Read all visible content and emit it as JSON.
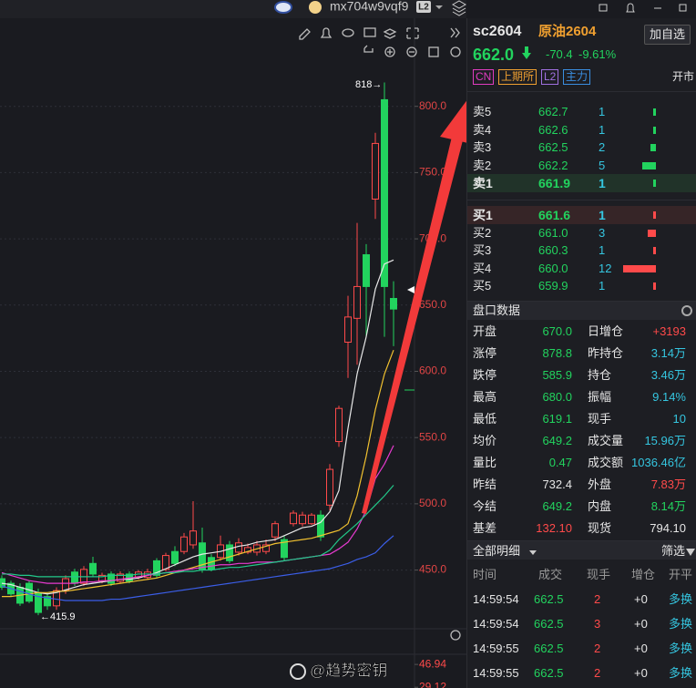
{
  "top_bar": {
    "username": "mx704w9vqf9",
    "badge": "L2"
  },
  "chart_data": {
    "type": "candlestick",
    "candles": {
      "open": [
        443.5,
        440,
        437,
        440,
        433,
        430,
        423,
        434.5,
        448.5,
        440,
        455,
        441.5,
        447,
        441.5,
        447,
        444.5,
        444.5,
        457,
        450.5,
        464,
        464,
        469,
        470.5,
        459.5,
        459.5,
        469,
        463.5,
        463.5,
        463.5,
        464,
        475,
        473,
        485,
        485,
        485,
        491.5,
        499,
        547,
        622,
        640,
        688,
        730,
        805,
        655
      ],
      "high": [
        446,
        442,
        440,
        442,
        436,
        432,
        437,
        446,
        451,
        453,
        460,
        448,
        449,
        449,
        449,
        450,
        451,
        459,
        463,
        468,
        478,
        502,
        482,
        462,
        476,
        472,
        474,
        470,
        472,
        473,
        487,
        476,
        495,
        494,
        493,
        495,
        530,
        574,
        657,
        712,
        696,
        780,
        818,
        668
      ],
      "low": [
        435,
        430,
        423,
        425,
        415.9,
        420,
        420,
        432,
        438,
        438,
        445,
        440,
        438,
        440,
        440,
        443,
        443,
        444,
        449,
        453,
        462,
        466,
        448,
        449,
        457,
        455,
        461,
        462,
        461,
        462,
        472,
        457,
        483,
        483,
        484,
        472,
        495,
        543,
        595,
        605,
        626,
        715,
        626,
        619
      ],
      "close": [
        437,
        432,
        425,
        426.5,
        418,
        423,
        434.5,
        443.5,
        440,
        450.5,
        447,
        446,
        440,
        447,
        441.5,
        448.5,
        448.5,
        446,
        461,
        455,
        475,
        479.5,
        450.5,
        450.5,
        469,
        457,
        470.5,
        467,
        469,
        469,
        485,
        459.5,
        493,
        491.5,
        491.5,
        475,
        526,
        572,
        641,
        664,
        664,
        772,
        664,
        647
      ]
    },
    "up_color": "#ff4a4a",
    "down_color": "#22d35e",
    "series": [
      {
        "color": "#e8e8e8",
        "values": [
          440,
          439,
          437,
          435,
          433,
          432,
          433,
          435,
          437,
          439,
          440,
          441,
          442,
          443,
          443,
          444,
          446,
          448,
          451,
          454,
          457,
          460,
          462,
          463,
          464,
          466,
          468,
          469,
          471,
          472,
          473,
          476,
          479,
          482,
          483,
          486,
          494,
          510,
          557,
          598,
          626,
          662,
          681,
          684
        ]
      },
      {
        "color": "#f2c230",
        "values": [
          430,
          430,
          431,
          432,
          433,
          433,
          434,
          434,
          435,
          436,
          437,
          438,
          439,
          440,
          441,
          442,
          443,
          444,
          446,
          448,
          450,
          452,
          454,
          456,
          458,
          460,
          462,
          464,
          466,
          468,
          470,
          471,
          472,
          473,
          474,
          476,
          478,
          480,
          485,
          506,
          536,
          571,
          598,
          616
        ]
      },
      {
        "color": "#e83ad0",
        "values": [
          448,
          446,
          444,
          442,
          441,
          440,
          440,
          440,
          440,
          441,
          441,
          442,
          442,
          443,
          444,
          445,
          446,
          447,
          448,
          449,
          450,
          451,
          452,
          453,
          454,
          454,
          455,
          455,
          456,
          456,
          456,
          457,
          458,
          459,
          460,
          461,
          462,
          466,
          471,
          481,
          495,
          519,
          530,
          544
        ]
      },
      {
        "color": "#22c98a",
        "values": [
          447,
          447,
          446,
          446,
          445,
          445,
          445,
          445,
          445,
          445,
          445,
          445,
          446,
          446,
          446,
          447,
          447,
          447,
          448,
          448,
          449,
          449,
          450,
          450,
          451,
          452,
          452,
          453,
          454,
          455,
          456,
          457,
          458,
          459,
          460,
          461,
          465,
          473,
          479,
          485,
          492,
          499,
          506,
          514
        ]
      },
      {
        "color": "#3b5ee8",
        "values": [
          438,
          436,
          434,
          432,
          430,
          429,
          428,
          427,
          427,
          427,
          427,
          427,
          428,
          428,
          429,
          430,
          431,
          432,
          433,
          434,
          435,
          436,
          437,
          438,
          439,
          440,
          441,
          442,
          443,
          444,
          445,
          446,
          447,
          448,
          449,
          450,
          451,
          453,
          455,
          458,
          460,
          463,
          470,
          476
        ]
      }
    ],
    "ylim": [
      405,
      850
    ],
    "yticks": [
      {
        "value": 800,
        "label": "800.0"
      },
      {
        "value": 750,
        "label": "750.0"
      },
      {
        "value": 700,
        "label": "700.0"
      },
      {
        "value": 650,
        "label": "650.0"
      },
      {
        "value": 600,
        "label": "600.0"
      },
      {
        "value": 550,
        "label": "550.0"
      },
      {
        "value": 500,
        "label": "500.0"
      },
      {
        "value": 450,
        "label": "450.0"
      }
    ],
    "grid": true,
    "high_label": "818→",
    "low_label": "←415.9"
  },
  "sub_chart": {
    "ylim": [
      25,
      52
    ],
    "yticks": [
      46.94,
      29.12
    ],
    "color": "#ff4a4a"
  },
  "quote": {
    "code": "sc2604",
    "name": "原油2604",
    "add_button": "加自选",
    "price": "662.0",
    "change": "-70.4",
    "change_pct": "-9.61%",
    "tags": [
      "CN",
      "上期所",
      "L2",
      "主力"
    ],
    "status": "开市"
  },
  "order_book": {
    "asks": [
      {
        "label": "卖5",
        "price": "662.7",
        "qty": 1
      },
      {
        "label": "卖4",
        "price": "662.6",
        "qty": 1
      },
      {
        "label": "卖3",
        "price": "662.5",
        "qty": 2
      },
      {
        "label": "卖2",
        "price": "662.2",
        "qty": 5
      },
      {
        "label": "卖1",
        "price": "661.9",
        "qty": 1
      }
    ],
    "bids": [
      {
        "label": "买1",
        "price": "661.6",
        "qty": 1
      },
      {
        "label": "买2",
        "price": "661.0",
        "qty": 3
      },
      {
        "label": "买3",
        "price": "660.3",
        "qty": 1
      },
      {
        "label": "买4",
        "price": "660.0",
        "qty": 12
      },
      {
        "label": "买5",
        "price": "659.9",
        "qty": 1
      }
    ]
  },
  "market_data": {
    "title": "盘口数据",
    "rows": [
      [
        "开盘",
        "670.0",
        "日增仓",
        "+3193"
      ],
      [
        "涨停",
        "878.8",
        "昨持仓",
        "3.14万"
      ],
      [
        "跌停",
        "585.9",
        "持仓",
        "3.46万"
      ],
      [
        "最高",
        "680.0",
        "振幅",
        "9.14%"
      ],
      [
        "最低",
        "619.1",
        "现手",
        "10"
      ],
      [
        "均价",
        "649.2",
        "成交量",
        "15.96万"
      ],
      [
        "量比",
        "0.47",
        "成交额",
        "1036.46亿"
      ],
      [
        "昨结",
        "732.4",
        "外盘",
        "7.83万"
      ],
      [
        "今结",
        "649.2",
        "内盘",
        "8.14万"
      ],
      [
        "基差",
        "132.10",
        "现货",
        "794.10"
      ]
    ]
  },
  "trades": {
    "title": "全部明细",
    "filter": "筛选",
    "headers": [
      "时间",
      "成交",
      "现手",
      "增仓",
      "开平"
    ],
    "rows": [
      [
        "14:59:54",
        "662.5",
        "2",
        "+0",
        "多换"
      ],
      [
        "14:59:54",
        "662.5",
        "3",
        "+0",
        "多换"
      ],
      [
        "14:59:55",
        "662.5",
        "2",
        "+0",
        "多换"
      ],
      [
        "14:59:55",
        "662.5",
        "2",
        "+0",
        "多换"
      ]
    ]
  },
  "watermark": "@趋势密钥"
}
